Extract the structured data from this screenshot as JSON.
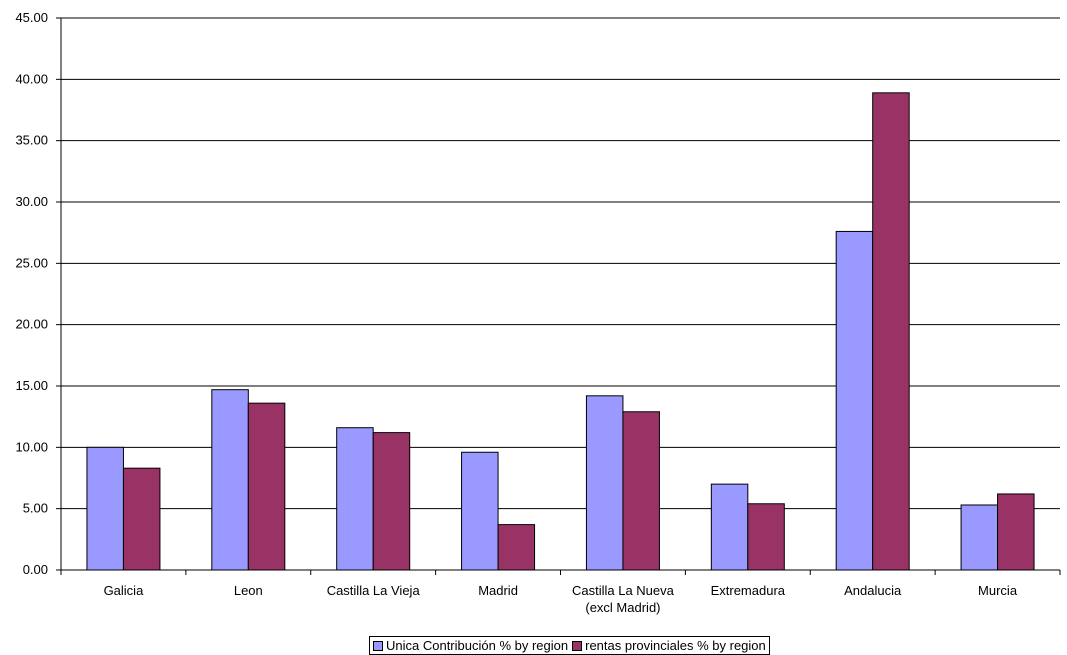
{
  "chart_data": {
    "type": "bar",
    "categories": [
      [
        "Galicia"
      ],
      [
        "Leon"
      ],
      [
        "Castilla La Vieja"
      ],
      [
        "Madrid"
      ],
      [
        "Castilla La Nueva",
        "(excl Madrid)"
      ],
      [
        "Extremadura"
      ],
      [
        "Andalucia"
      ],
      [
        "Murcia"
      ]
    ],
    "series": [
      {
        "name": "Unica Contribución % by region",
        "color": "#9999ff",
        "values": [
          10.0,
          14.7,
          11.6,
          9.6,
          14.2,
          7.0,
          27.6,
          5.3
        ]
      },
      {
        "name": "rentas provinciales % by region",
        "color": "#993366",
        "values": [
          8.3,
          13.6,
          11.2,
          3.7,
          12.9,
          5.4,
          38.9,
          6.2
        ]
      }
    ],
    "yticks": [
      "0.00",
      "5.00",
      "10.00",
      "15.00",
      "20.00",
      "25.00",
      "30.00",
      "35.00",
      "40.00",
      "45.00"
    ],
    "ylim": [
      0,
      45
    ],
    "grid": true,
    "legend_position": "bottom"
  }
}
